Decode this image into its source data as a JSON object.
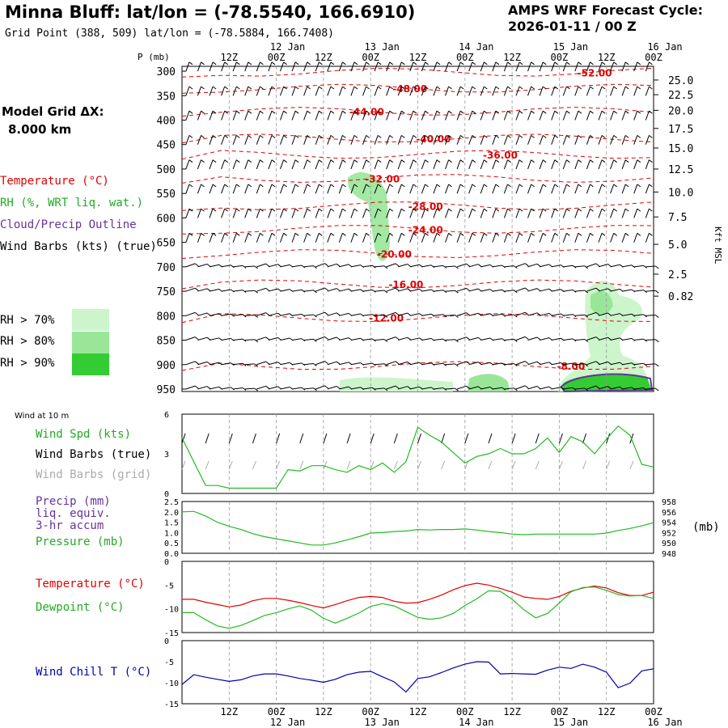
{
  "header": {
    "title": "Minna Bluff:  lat/lon = (-78.5540, 166.6910)",
    "subtitle": "Grid Point (388, 509) lat/lon = (-78.5884, 166.7408)",
    "forecast_label": "AMPS WRF Forecast Cycle:",
    "cycle": "2026-01-11 / 00  Z",
    "grid_label": "Model Grid ΔX:",
    "grid_value": "8.000 km"
  },
  "legend": {
    "temperature": "Temperature (°C)",
    "rh": "RH (%, WRT liq. wat.)",
    "cloud": "Cloud/Precip Outline",
    "barbs": "Wind Barbs (kts) (true)",
    "rh_levels": [
      {
        "label": "RH > 70%",
        "color": "#ccf5cc"
      },
      {
        "label": "RH > 80%",
        "color": "#99e699"
      },
      {
        "label": "RH > 90%",
        "color": "#33cc33"
      }
    ],
    "wind10m_title": "Wind at 10 m",
    "wind_spd": "Wind Spd (kts)",
    "wind_barbs_true": "Wind Barbs (true)",
    "wind_barbs_grid": "Wind Barbs (grid)",
    "precip_lines": [
      "Precip (mm)",
      "liq. equiv.",
      "3-hr accum"
    ],
    "pressure": "Pressure (mb)",
    "pressure_unit": "(mb)",
    "temp2": "Temperature (°C)",
    "dewpoint": "Dewpoint (°C)",
    "windchill": "Wind Chill T (°C)"
  },
  "colors": {
    "temperature": "#e00000",
    "green": "#22bb22",
    "purple": "#663399",
    "blue": "#0000aa",
    "gray": "#aaaaaa",
    "grid": "#999999"
  },
  "chart_data": {
    "type": "line",
    "time_axis": {
      "hours_start": 0,
      "hours_end": 120,
      "ticks": [
        {
          "h": 12,
          "top": "12Z",
          "bottom": ""
        },
        {
          "h": 24,
          "top": "00Z",
          "bottom": "12 Jan"
        },
        {
          "h": 36,
          "top": "12Z",
          "bottom": ""
        },
        {
          "h": 48,
          "top": "00Z",
          "bottom": "13 Jan"
        },
        {
          "h": 60,
          "top": "12Z",
          "bottom": ""
        },
        {
          "h": 72,
          "top": "00Z",
          "bottom": "14 Jan"
        },
        {
          "h": 84,
          "top": "12Z",
          "bottom": ""
        },
        {
          "h": 96,
          "top": "00Z",
          "bottom": "15 Jan"
        },
        {
          "h": 108,
          "top": "12Z",
          "bottom": ""
        },
        {
          "h": 120,
          "top": "00Z",
          "bottom": "16 Jan"
        }
      ]
    },
    "profile": {
      "ylabel": "P (mb)",
      "pressure_range": [
        290,
        955
      ],
      "pressure_ticks": [
        "300",
        "350",
        "400",
        "450",
        "500",
        "550",
        "600",
        "650",
        "700",
        "750",
        "800",
        "850",
        "900",
        "950"
      ],
      "height_axis_label": "Kft MSL",
      "height_ticks": [
        {
          "label": "25.0",
          "p": 318
        },
        {
          "label": "22.5",
          "p": 348
        },
        {
          "label": "20.0",
          "p": 380
        },
        {
          "label": "17.5",
          "p": 417
        },
        {
          "label": "15.0",
          "p": 457
        },
        {
          "label": "12.5",
          "p": 500
        },
        {
          "label": "10.0",
          "p": 547
        },
        {
          "label": "7.5",
          "p": 598
        },
        {
          "label": "5.0",
          "p": 654
        },
        {
          "label": "2.5",
          "p": 715
        },
        {
          "label": "0.82",
          "p": 760
        }
      ],
      "temperature_labels": [
        {
          "label": "-52.00",
          "h": 105,
          "p": 302
        },
        {
          "label": "-48.00",
          "h": 58,
          "p": 335
        },
        {
          "label": "-44.00",
          "h": 47,
          "p": 382
        },
        {
          "label": "-40.00",
          "h": 64,
          "p": 437
        },
        {
          "label": "-36.00",
          "h": 81,
          "p": 470
        },
        {
          "label": "-32.00",
          "h": 51,
          "p": 519
        },
        {
          "label": "-28.00",
          "h": 62,
          "p": 575
        },
        {
          "label": "-24.00",
          "h": 62,
          "p": 623
        },
        {
          "label": "-20.00",
          "h": 54,
          "p": 673
        },
        {
          "label": "-16.00",
          "h": 57,
          "p": 735
        },
        {
          "label": "-12.00",
          "h": 52,
          "p": 804
        },
        {
          "label": "-8.00",
          "h": 99,
          "p": 902
        }
      ]
    },
    "wind10m": {
      "ylim": [
        0,
        6
      ],
      "yticks": [
        "0",
        "3",
        "6"
      ],
      "hours": [
        0,
        3,
        6,
        9,
        12,
        15,
        18,
        21,
        24,
        27,
        30,
        33,
        36,
        39,
        42,
        45,
        48,
        51,
        54,
        57,
        60,
        63,
        66,
        69,
        72,
        75,
        78,
        81,
        84,
        87,
        90,
        93,
        96,
        99,
        102,
        105,
        108,
        111,
        114,
        117,
        120
      ],
      "speed_kts": [
        4.2,
        2.4,
        0.6,
        0.6,
        0.4,
        0.4,
        0.4,
        0.4,
        0.4,
        1.8,
        1.7,
        2.1,
        2.1,
        1.8,
        1.6,
        2.1,
        1.8,
        2.3,
        1.6,
        2.4,
        5.0,
        4.4,
        3.9,
        3.1,
        2.3,
        2.8,
        3.0,
        3.4,
        3.0,
        3.0,
        3.4,
        4.2,
        3.1,
        4.3,
        3.9,
        3.0,
        4.1,
        5.1,
        4.4,
        2.2,
        2.0
      ]
    },
    "pressure": {
      "precip_ylim": [
        0,
        2.5
      ],
      "precip_ticks": [
        "0.0",
        "0.5",
        "1.0",
        "1.5",
        "2.0",
        "2.5"
      ],
      "pressure_ylim": [
        948,
        958
      ],
      "pressure_ticks": [
        "948",
        "950",
        "952",
        "954",
        "956",
        "958"
      ],
      "hours": [
        0,
        3,
        6,
        9,
        12,
        15,
        18,
        21,
        24,
        27,
        30,
        33,
        36,
        39,
        42,
        45,
        48,
        51,
        54,
        57,
        60,
        63,
        66,
        69,
        72,
        75,
        78,
        81,
        84,
        87,
        90,
        93,
        96,
        99,
        102,
        105,
        108,
        111,
        114,
        117,
        120
      ],
      "pressure_mb": [
        956.0,
        956.1,
        955.2,
        954.0,
        953.2,
        952.6,
        951.8,
        951.2,
        950.8,
        950.4,
        950.0,
        949.6,
        949.6,
        950.0,
        950.6,
        951.2,
        951.9,
        952.0,
        952.2,
        952.3,
        952.6,
        952.5,
        952.6,
        952.6,
        952.7,
        952.5,
        952.2,
        952.0,
        951.7,
        951.6,
        951.7,
        951.7,
        951.7,
        951.7,
        951.7,
        951.7,
        951.9,
        952.4,
        952.8,
        953.3,
        953.9
      ],
      "precip_mm": []
    },
    "temperature": {
      "ylim": [
        -15,
        0
      ],
      "yticks": [
        "0",
        "-5",
        "-10",
        "-15"
      ],
      "hours": [
        0,
        3,
        6,
        9,
        12,
        15,
        18,
        21,
        24,
        27,
        30,
        33,
        36,
        39,
        42,
        45,
        48,
        51,
        54,
        57,
        60,
        63,
        66,
        69,
        72,
        75,
        78,
        81,
        84,
        87,
        90,
        93,
        96,
        99,
        102,
        105,
        108,
        111,
        114,
        117,
        120
      ],
      "temperature_c": [
        -8.0,
        -8.0,
        -8.6,
        -9.1,
        -9.6,
        -9.2,
        -8.3,
        -7.8,
        -7.8,
        -8.2,
        -8.7,
        -9.3,
        -9.8,
        -9.1,
        -8.3,
        -7.6,
        -7.4,
        -7.6,
        -8.4,
        -8.8,
        -8.7,
        -8.0,
        -7.1,
        -6.0,
        -5.1,
        -4.6,
        -5.0,
        -5.7,
        -6.5,
        -7.5,
        -7.8,
        -8.0,
        -7.4,
        -6.3,
        -5.6,
        -5.2,
        -5.6,
        -6.6,
        -7.2,
        -7.2,
        -6.5
      ],
      "dewpoint_c": [
        -10.8,
        -10.8,
        -12.3,
        -13.6,
        -14.1,
        -13.5,
        -12.5,
        -11.4,
        -10.8,
        -10.0,
        -9.4,
        -10.3,
        -12.0,
        -13.0,
        -12.0,
        -10.9,
        -9.5,
        -8.9,
        -9.4,
        -10.6,
        -11.8,
        -12.2,
        -11.9,
        -11.0,
        -9.3,
        -7.9,
        -6.2,
        -6.3,
        -8.0,
        -10.2,
        -11.9,
        -11.0,
        -8.8,
        -6.4,
        -5.5,
        -5.4,
        -6.1,
        -7.0,
        -7.3,
        -7.2,
        -7.8
      ]
    },
    "windchill": {
      "ylim": [
        -15,
        0
      ],
      "yticks": [
        "0",
        "-5",
        "-10",
        "-15"
      ],
      "hours": [
        0,
        3,
        6,
        9,
        12,
        15,
        18,
        21,
        24,
        27,
        30,
        33,
        36,
        39,
        42,
        45,
        48,
        51,
        54,
        57,
        60,
        63,
        66,
        69,
        72,
        75,
        78,
        81,
        84,
        87,
        90,
        93,
        96,
        99,
        102,
        105,
        108,
        111,
        114,
        117,
        120
      ],
      "windchill_c": [
        -10.4,
        -8.1,
        -8.7,
        -9.2,
        -9.7,
        -9.3,
        -8.4,
        -7.9,
        -7.9,
        -8.4,
        -9.0,
        -9.4,
        -9.9,
        -9.2,
        -8.1,
        -7.5,
        -7.3,
        -8.6,
        -9.8,
        -12.2,
        -9.0,
        -8.6,
        -7.6,
        -6.5,
        -5.6,
        -5.0,
        -5.1,
        -7.9,
        -7.8,
        -7.9,
        -8.0,
        -7.0,
        -6.3,
        -6.6,
        -5.6,
        -6.3,
        -7.5,
        -11.2,
        -10.1,
        -7.2,
        -6.7
      ]
    }
  }
}
